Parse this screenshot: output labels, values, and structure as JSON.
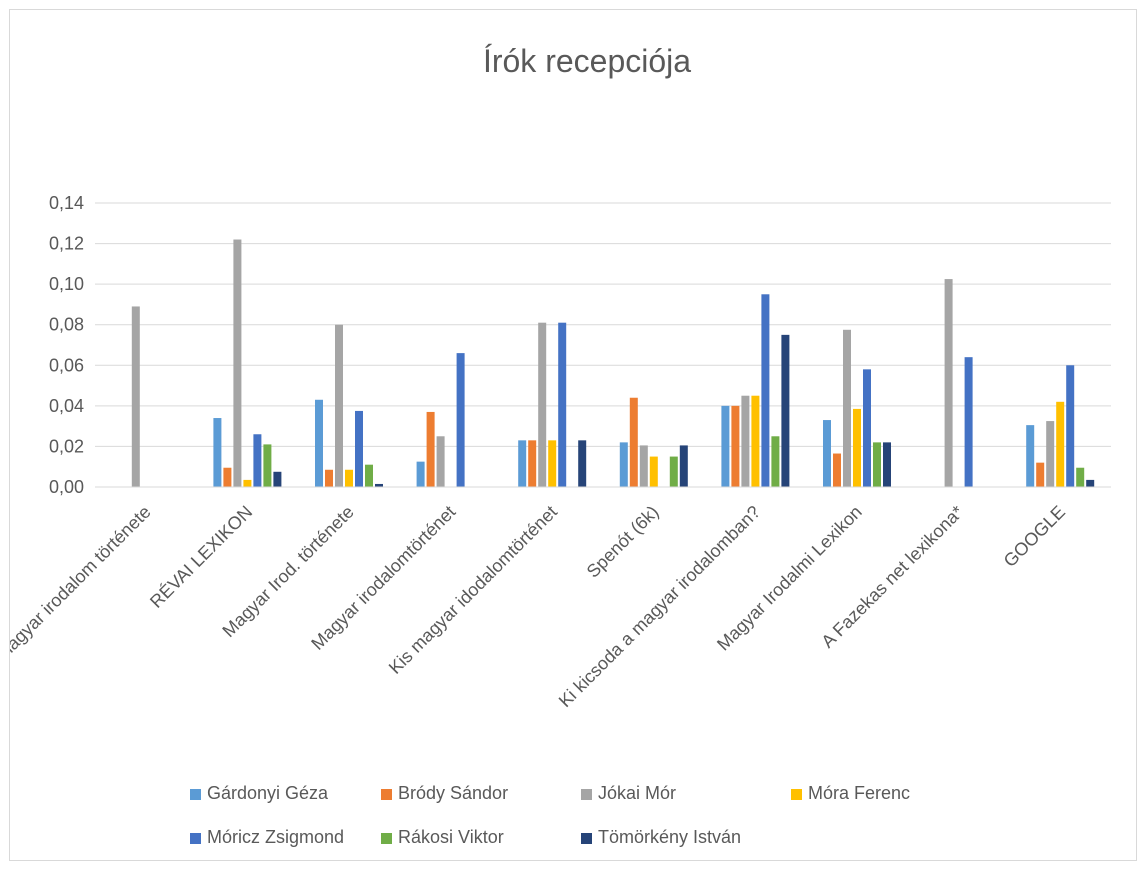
{
  "chart_data": {
    "type": "bar",
    "title": "Írók recepciója",
    "xlabel": "",
    "ylabel": "",
    "ylim": [
      0,
      0.14
    ],
    "yticks": [
      "0,00",
      "0,02",
      "0,04",
      "0,06",
      "0,08",
      "0,10",
      "0,12",
      "0,14"
    ],
    "grid": true,
    "legend_position": "bottom",
    "categories": [
      "A magyar irodalom története",
      "RÉVAI LEXIKON",
      "Magyar Irod. története",
      "Magyar irodalomtörténet",
      "Kis magyar idodalomtörténet",
      "Spenót (6k)",
      "Ki kicsoda a magyar irodalomban?",
      "Magyar Irodalmi Lexikon",
      "A Fazekas net lexikona*",
      "GOOGLE"
    ],
    "series": [
      {
        "name": "Gárdonyi Géza",
        "color": "#5B9BD5",
        "values": [
          0,
          0.034,
          0.043,
          0.0125,
          0.023,
          0.022,
          0.04,
          0.033,
          0,
          0.0305
        ]
      },
      {
        "name": "Bródy Sándor",
        "color": "#ED7D31",
        "values": [
          0,
          0.0095,
          0.0085,
          0.037,
          0.023,
          0.044,
          0.04,
          0.0165,
          0,
          0.012
        ]
      },
      {
        "name": "Jókai Mór",
        "color": "#A5A5A5",
        "values": [
          0.089,
          0.122,
          0.08,
          0.025,
          0.081,
          0.0205,
          0.045,
          0.0775,
          0.1025,
          0.0325
        ]
      },
      {
        "name": "Móra Ferenc",
        "color": "#FFC000",
        "values": [
          0,
          0.0035,
          0.0085,
          0,
          0.023,
          0.015,
          0.045,
          0.0385,
          0,
          0.042
        ]
      },
      {
        "name": "Móricz Zsigmond",
        "color": "#4472C4",
        "values": [
          0,
          0.026,
          0.0375,
          0.066,
          0.081,
          0,
          0.095,
          0.058,
          0.064,
          0.06
        ]
      },
      {
        "name": "Rákosi Viktor",
        "color": "#70AD47",
        "values": [
          0,
          0.021,
          0.011,
          0,
          0,
          0.015,
          0.025,
          0.022,
          0,
          0.0095
        ]
      },
      {
        "name": "Tömörkény István",
        "color": "#264478",
        "values": [
          0,
          0.0075,
          0.0015,
          0,
          0.023,
          0.0205,
          0.075,
          0.022,
          0,
          0.0035
        ]
      }
    ]
  }
}
